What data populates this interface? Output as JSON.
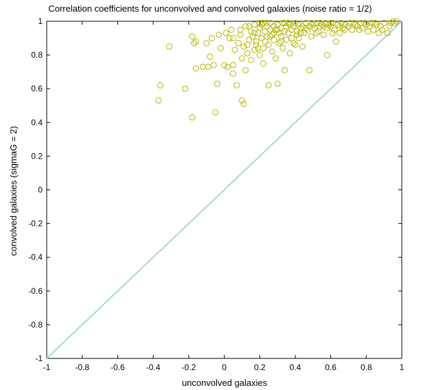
{
  "chart_data": {
    "type": "scatter",
    "title": "Correlation coefficients for unconvolved and convolved galaxies (noise ratio = 1/2)",
    "xlabel": "unconvolved galaxies",
    "ylabel": "convolved galaxies (sigmaG = 2)",
    "xlim": [
      -1,
      1
    ],
    "ylim": [
      -1,
      1
    ],
    "xticks": [
      -1,
      -0.8,
      -0.6,
      -0.4,
      -0.2,
      0,
      0.2,
      0.4,
      0.6,
      0.8,
      1
    ],
    "yticks": [
      -1,
      -0.8,
      -0.6,
      -0.4,
      -0.2,
      0,
      0.2,
      0.4,
      0.6,
      0.8,
      1
    ],
    "xtick_labels": [
      "-1",
      "-0.8",
      "-0.6",
      "-0.4",
      "-0.2",
      "0",
      "0.2",
      "0.4",
      "0.6",
      "0.8",
      "1"
    ],
    "ytick_labels": [
      "-1",
      "-0.8",
      "-0.6",
      "-0.4",
      "-0.2",
      "0",
      "0.2",
      "0.4",
      "0.6",
      "0.8",
      "1"
    ],
    "grid": false,
    "colors": {
      "points": "#b5b500",
      "reference_line": "#a8d8d0",
      "axes": "#000000"
    },
    "reference_line": {
      "x": [
        -1,
        1
      ],
      "y": [
        -1,
        1
      ]
    },
    "series": [
      {
        "marker": "circle-open",
        "points": [
          [
            -0.37,
            0.53
          ],
          [
            -0.36,
            0.62
          ],
          [
            -0.31,
            0.85
          ],
          [
            -0.22,
            0.6
          ],
          [
            -0.18,
            0.43
          ],
          [
            -0.18,
            0.91
          ],
          [
            -0.17,
            0.87
          ],
          [
            -0.16,
            0.72
          ],
          [
            -0.16,
            0.88
          ],
          [
            -0.12,
            0.73
          ],
          [
            -0.1,
            0.87
          ],
          [
            -0.09,
            0.73
          ],
          [
            -0.08,
            0.79
          ],
          [
            -0.07,
            0.9
          ],
          [
            -0.06,
            0.74
          ],
          [
            -0.05,
            0.46
          ],
          [
            -0.04,
            0.63
          ],
          [
            -0.03,
            0.92
          ],
          [
            -0.02,
            0.84
          ],
          [
            0.0,
            0.74
          ],
          [
            0.01,
            0.93
          ],
          [
            0.02,
            0.73
          ],
          [
            0.03,
            0.9
          ],
          [
            0.04,
            0.95
          ],
          [
            0.05,
            0.74
          ],
          [
            0.05,
            0.69
          ],
          [
            0.06,
            0.83
          ],
          [
            0.07,
            0.62
          ],
          [
            0.08,
            0.87
          ],
          [
            0.09,
            0.92
          ],
          [
            0.1,
            0.53
          ],
          [
            0.1,
            0.78
          ],
          [
            0.11,
            0.85
          ],
          [
            0.11,
            0.51
          ],
          [
            0.12,
            0.71
          ],
          [
            0.12,
            0.97
          ],
          [
            0.13,
            0.81
          ],
          [
            0.14,
            0.89
          ],
          [
            0.15,
            0.94
          ],
          [
            0.15,
            0.77
          ],
          [
            0.16,
            0.91
          ],
          [
            0.17,
            0.83
          ],
          [
            0.17,
            0.98
          ],
          [
            0.18,
            0.88
          ],
          [
            0.18,
            0.86
          ],
          [
            0.19,
            0.93
          ],
          [
            0.2,
            0.96
          ],
          [
            0.2,
            0.8
          ],
          [
            0.21,
            0.9
          ],
          [
            0.21,
            0.98
          ],
          [
            0.22,
            0.84
          ],
          [
            0.22,
            0.75
          ],
          [
            0.23,
            0.94
          ],
          [
            0.23,
            0.88
          ],
          [
            0.24,
            0.97
          ],
          [
            0.24,
            0.91
          ],
          [
            0.25,
            0.62
          ],
          [
            0.25,
            0.86
          ],
          [
            0.26,
            0.95
          ],
          [
            0.26,
            0.99
          ],
          [
            0.27,
            0.82
          ],
          [
            0.27,
            0.92
          ],
          [
            0.28,
            0.97
          ],
          [
            0.28,
            0.89
          ],
          [
            0.29,
            0.95
          ],
          [
            0.29,
            0.78
          ],
          [
            0.3,
            0.63
          ],
          [
            0.3,
            0.98
          ],
          [
            0.31,
            0.93
          ],
          [
            0.31,
            0.87
          ],
          [
            0.32,
            0.96
          ],
          [
            0.32,
            0.91
          ],
          [
            0.33,
            0.99
          ],
          [
            0.33,
            0.84
          ],
          [
            0.34,
            0.94
          ],
          [
            0.34,
            0.71
          ],
          [
            0.35,
            0.97
          ],
          [
            0.35,
            0.89
          ],
          [
            0.36,
            0.93
          ],
          [
            0.37,
            0.98
          ],
          [
            0.37,
            0.81
          ],
          [
            0.38,
            0.95
          ],
          [
            0.38,
            0.9
          ],
          [
            0.39,
            0.97
          ],
          [
            0.4,
            0.99
          ],
          [
            0.4,
            0.86
          ],
          [
            0.41,
            0.94
          ],
          [
            0.41,
            0.92
          ],
          [
            0.42,
            0.98
          ],
          [
            0.43,
            0.96
          ],
          [
            0.44,
            0.85
          ],
          [
            0.44,
            0.97
          ],
          [
            0.45,
            0.93
          ],
          [
            0.46,
            0.99
          ],
          [
            0.47,
            0.95
          ],
          [
            0.48,
            0.71
          ],
          [
            0.48,
            0.97
          ],
          [
            0.49,
            0.91
          ],
          [
            0.5,
            0.98
          ],
          [
            0.51,
            0.96
          ],
          [
            0.52,
            0.99
          ],
          [
            0.53,
            0.94
          ],
          [
            0.54,
            0.97
          ],
          [
            0.55,
            0.98
          ],
          [
            0.56,
            0.92
          ],
          [
            0.57,
            0.99
          ],
          [
            0.58,
            0.96
          ],
          [
            0.58,
            0.8
          ],
          [
            0.59,
            0.98
          ],
          [
            0.6,
            0.97
          ],
          [
            0.61,
            0.99
          ],
          [
            0.62,
            0.95
          ],
          [
            0.63,
            0.88
          ],
          [
            0.64,
            0.98
          ],
          [
            0.65,
            0.97
          ],
          [
            0.66,
            0.99
          ],
          [
            0.67,
            0.96
          ],
          [
            0.68,
            0.98
          ],
          [
            0.7,
            0.97
          ],
          [
            0.71,
            0.99
          ],
          [
            0.72,
            0.95
          ],
          [
            0.74,
            0.98
          ],
          [
            0.75,
            0.97
          ],
          [
            0.77,
            0.99
          ],
          [
            0.78,
            0.96
          ],
          [
            0.8,
            0.98
          ],
          [
            0.82,
            0.97
          ],
          [
            0.83,
            0.99
          ],
          [
            0.84,
            0.95
          ],
          [
            0.86,
            0.98
          ],
          [
            0.88,
            0.97
          ],
          [
            0.9,
            0.99
          ],
          [
            0.92,
            0.93
          ],
          [
            0.94,
            0.99
          ],
          [
            0.95,
            1.0
          ],
          [
            0.96,
            0.99
          ],
          [
            0.97,
            1.0
          ],
          [
            0.24,
            0.99
          ],
          [
            0.28,
            0.93
          ],
          [
            0.32,
            0.88
          ],
          [
            0.36,
            0.99
          ],
          [
            0.39,
            0.87
          ],
          [
            0.43,
            0.93
          ],
          [
            0.46,
            0.96
          ],
          [
            0.52,
            0.93
          ],
          [
            0.56,
            0.97
          ],
          [
            0.61,
            0.93
          ],
          [
            0.68,
            0.95
          ],
          [
            0.73,
            0.99
          ],
          [
            0.79,
            0.99
          ],
          [
            0.85,
            0.99
          ],
          [
            0.89,
            0.95
          ],
          [
            0.2,
            0.99
          ],
          [
            0.26,
            0.91
          ],
          [
            0.3,
            0.95
          ],
          [
            0.34,
            0.99
          ],
          [
            0.42,
            0.9
          ],
          [
            0.49,
            0.99
          ],
          [
            0.54,
            0.99
          ],
          [
            0.6,
            0.99
          ],
          [
            0.65,
            0.93
          ],
          [
            0.76,
            0.95
          ],
          [
            0.81,
            0.94
          ],
          [
            0.87,
            0.93
          ],
          [
            0.93,
            0.97
          ],
          [
            0.14,
            0.97
          ],
          [
            0.17,
            0.93
          ],
          [
            0.22,
            0.99
          ],
          [
            0.09,
            0.95
          ],
          [
            0.05,
            0.9
          ],
          [
            0.13,
            0.86
          ],
          [
            0.19,
            0.84
          ]
        ]
      }
    ]
  }
}
